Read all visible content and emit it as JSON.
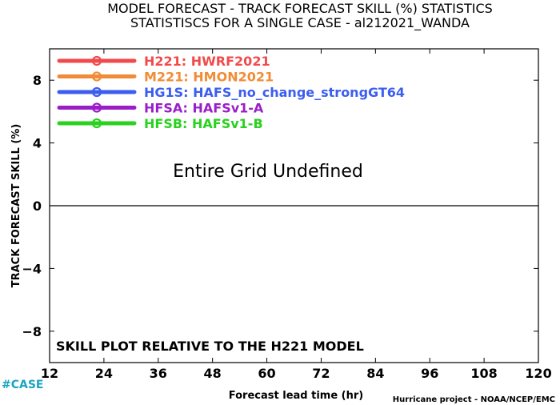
{
  "chart_data": {
    "type": "line",
    "title": "MODEL FORECAST - TRACK FORECAST SKILL (%) STATISTICS",
    "subtitle": "STATISTISCS FOR A SINGLE CASE - al212021_WANDA",
    "xlabel": "Forecast lead time (hr)",
    "ylabel": "TRACK FORECAST SKILL (%)",
    "xlim": [
      12,
      120
    ],
    "ylim": [
      -10,
      10
    ],
    "xticks": [
      12,
      24,
      36,
      48,
      60,
      72,
      84,
      96,
      108,
      120
    ],
    "yticks": [
      -8,
      -4,
      0,
      4,
      8
    ],
    "ytick_labels": [
      "−8",
      "−4",
      "0",
      "4",
      "8"
    ],
    "zero_line": 0,
    "grid": false,
    "legend_position": "top-left",
    "series": [
      {
        "name": "H221: HWRF2021",
        "color": "#f24a4a",
        "values": []
      },
      {
        "name": "M221: HMON2021",
        "color": "#f08c38",
        "values": []
      },
      {
        "name": "HG1S: HAFS_no_change_strongGT64",
        "color": "#3c5ef0",
        "values": []
      },
      {
        "name": "HFSA: HAFSv1-A",
        "color": "#9a1ec8",
        "values": []
      },
      {
        "name": "HFSB: HAFSv1-B",
        "color": "#28d21e",
        "values": []
      }
    ],
    "annotations": {
      "center": "Entire Grid Undefined",
      "bottom_left": "SKILL PLOT RELATIVE TO THE H221 MODEL"
    }
  },
  "footer": {
    "case_tag": "#CASE",
    "case_color": "#1aa3c0",
    "credit": "Hurricane project - NOAA/NCEP/EMC"
  }
}
